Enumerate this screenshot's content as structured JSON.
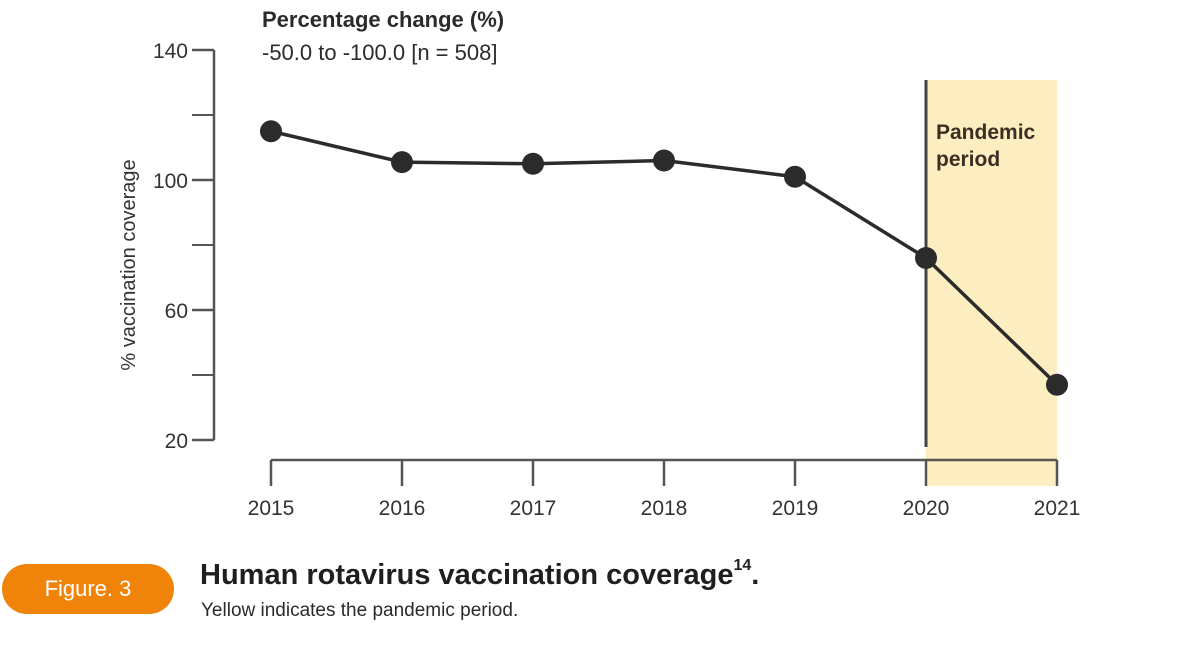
{
  "header": {
    "title": "Percentage change (%)",
    "subtitle": "-50.0 to -100.0 [n = 508]"
  },
  "badge": {
    "label": "Figure. 3"
  },
  "caption": {
    "title": "Human rotavirus vaccination coverage",
    "title_sup": "14",
    "title_end": ".",
    "subtitle": "Yellow indicates the pandemic period."
  },
  "chart_data": {
    "type": "line",
    "x": [
      "2015",
      "2016",
      "2017",
      "2018",
      "2019",
      "2020",
      "2021"
    ],
    "series": [
      {
        "values": [
          115,
          105.5,
          105,
          106,
          101,
          76,
          37
        ]
      }
    ],
    "ylabel": "% vaccination coverage",
    "xlabel": "",
    "ylim": [
      20,
      140
    ],
    "yticks": [
      20,
      60,
      100,
      140
    ],
    "yminor_ticks": [
      40,
      80,
      120
    ],
    "highlight": {
      "label_line1": "Pandemic",
      "label_line2": "period",
      "from": "2020",
      "to": "2021",
      "color": "#fdeec1"
    },
    "line_color": "#2b2b2b",
    "axis_color": "#555555",
    "grid": false
  }
}
